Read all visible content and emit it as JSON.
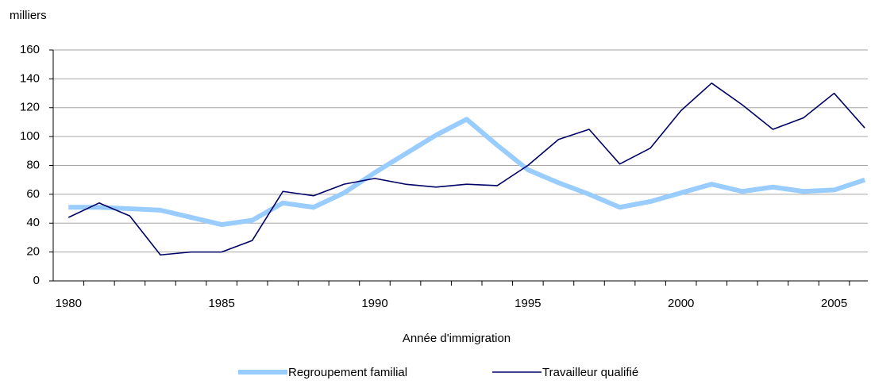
{
  "chart_data": {
    "type": "line",
    "y_axis_label": "milliers",
    "x_axis_label": "Année d'immigration",
    "x": [
      1980,
      1981,
      1982,
      1983,
      1984,
      1985,
      1986,
      1987,
      1988,
      1989,
      1990,
      1991,
      1992,
      1993,
      1994,
      1995,
      1996,
      1997,
      1998,
      1999,
      2000,
      2001,
      2002,
      2003,
      2004,
      2005,
      2006
    ],
    "series": [
      {
        "name": "Regroupement familial",
        "color": "#99ccff",
        "values": [
          51,
          51,
          50,
          49,
          44,
          39,
          42,
          54,
          51,
          61,
          75,
          88,
          101,
          112,
          94,
          77,
          68,
          60,
          51,
          55,
          61,
          67,
          62,
          65,
          62,
          63,
          70
        ]
      },
      {
        "name": "Travailleur qualifié",
        "color": "#000066",
        "values": [
          44,
          54,
          45,
          18,
          20,
          20,
          28,
          62,
          59,
          67,
          71,
          67,
          65,
          67,
          66,
          80,
          98,
          105,
          81,
          92,
          118,
          137,
          122,
          105,
          113,
          130,
          106
        ]
      }
    ],
    "xlim": [
      1979.5,
      2006.1
    ],
    "xticks": [
      1980,
      1985,
      1990,
      1995,
      2000,
      2005
    ],
    "ylim": [
      0,
      160
    ],
    "yticks": [
      0,
      20,
      40,
      60,
      80,
      100,
      120,
      140,
      160
    ],
    "grid": true
  }
}
